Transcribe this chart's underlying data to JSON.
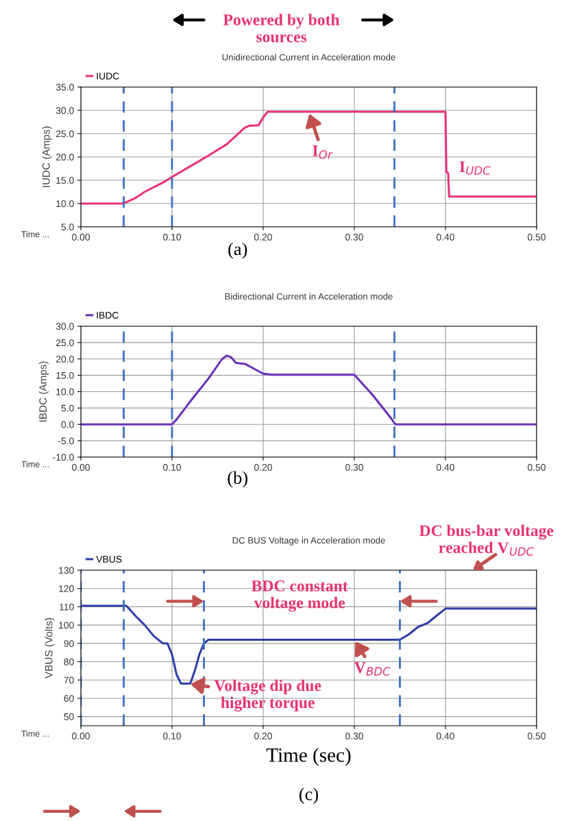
{
  "chart_data": [
    {
      "type": "line",
      "title": "Unidirectional Current in Acceleration mode",
      "ylabel": "IUDC (Amps)",
      "xlabel": "Time ...",
      "series": [
        {
          "name": "IUDC",
          "color": "#e8317a",
          "x": [
            0,
            0.045,
            0.05,
            0.06,
            0.07,
            0.08,
            0.09,
            0.1,
            0.12,
            0.14,
            0.15,
            0.16,
            0.17,
            0.18,
            0.185,
            0.195,
            0.2,
            0.205,
            0.4,
            0.401,
            0.403,
            0.404,
            0.5
          ],
          "values": [
            10,
            10,
            10.3,
            11.2,
            12.5,
            13.5,
            14.5,
            15.7,
            18,
            20.3,
            21.5,
            22.7,
            24.5,
            26.3,
            26.7,
            26.8,
            28.5,
            29.7,
            29.7,
            16.8,
            16.5,
            11.5,
            11.5
          ]
        }
      ],
      "xlim": [
        0,
        0.5
      ],
      "xticks": [
        {
          "value": 0,
          "label": "0.00"
        },
        {
          "value": 0.1,
          "label": "0.10"
        },
        {
          "value": 0.2,
          "label": "0.20"
        },
        {
          "value": 0.3,
          "label": "0.30"
        },
        {
          "value": 0.4,
          "label": "0.40"
        },
        {
          "value": 0.5,
          "label": "0.50"
        }
      ],
      "ylim": [
        5,
        35
      ],
      "yticks": [
        {
          "value": 5,
          "label": "5.0"
        },
        {
          "value": 10,
          "label": "10.0"
        },
        {
          "value": 15,
          "label": "15.0"
        },
        {
          "value": 20,
          "label": "20.0"
        },
        {
          "value": 25,
          "label": "25.0"
        },
        {
          "value": 30,
          "label": "30.0"
        },
        {
          "value": 35,
          "label": "35.0"
        }
      ],
      "grid": true,
      "legend": "top left",
      "ref_lines": [
        {
          "axis": "x",
          "value": 0.047,
          "color": "#3a6fc0",
          "line_style": "dashed"
        },
        {
          "axis": "x",
          "value": 0.1,
          "color": "#3a6fc0",
          "line_style": "dashed"
        },
        {
          "axis": "x",
          "value": 0.344,
          "color": "#3a6fc0",
          "line_style": "dashed"
        }
      ],
      "annotations": [
        "Powered by both\nsources",
        {
          "text": "I$_{Or}$",
          "x": 0.25,
          "y": 29.7
        },
        "I$_{UDC}$",
        "(a)"
      ]
    },
    {
      "type": "line",
      "title": "Bidirectional Current in Acceleration mode",
      "ylabel": "IBDC (Amps)",
      "xlabel": "Time ...",
      "series": [
        {
          "name": "IBDC",
          "color": "#6a2fb8",
          "x": [
            0,
            0.1,
            0.105,
            0.12,
            0.14,
            0.155,
            0.16,
            0.165,
            0.17,
            0.18,
            0.2,
            0.21,
            0.3,
            0.32,
            0.34,
            0.345,
            0.5
          ],
          "values": [
            0,
            0,
            1.5,
            7,
            14,
            20,
            21,
            20.5,
            18.8,
            18.5,
            15.5,
            15.2,
            15.2,
            9,
            2,
            0,
            0
          ]
        }
      ],
      "xlim": [
        0,
        0.5
      ],
      "xticks": [
        {
          "value": 0,
          "label": "0.00"
        },
        {
          "value": 0.1,
          "label": "0.10"
        },
        {
          "value": 0.2,
          "label": "0.20"
        },
        {
          "value": 0.3,
          "label": "0.30"
        },
        {
          "value": 0.4,
          "label": "0.40"
        },
        {
          "value": 0.5,
          "label": "0.50"
        }
      ],
      "ylim": [
        -10,
        30
      ],
      "yticks": [
        {
          "value": -10,
          "label": "-10.0"
        },
        {
          "value": -5,
          "label": "-5.0"
        },
        {
          "value": 0,
          "label": "0.0"
        },
        {
          "value": 5,
          "label": "5.0"
        },
        {
          "value": 10,
          "label": "10.0"
        },
        {
          "value": 15,
          "label": "15.0"
        },
        {
          "value": 20,
          "label": "20.0"
        },
        {
          "value": 25,
          "label": "25.0"
        },
        {
          "value": 30,
          "label": "30.0"
        }
      ],
      "grid": true,
      "legend": "top left",
      "ref_lines": [
        {
          "axis": "x",
          "value": 0.047,
          "color": "#3a6fc0",
          "line_style": "dashed"
        },
        {
          "axis": "x",
          "value": 0.1,
          "color": "#3a6fc0",
          "line_style": "dashed"
        },
        {
          "axis": "x",
          "value": 0.344,
          "color": "#3a6fc0",
          "line_style": "dashed"
        }
      ],
      "annotations": [
        "(b)"
      ]
    },
    {
      "type": "line",
      "title": "DC BUS Voltage in Acceleration mode",
      "ylabel": "VBUS (Volts)",
      "xlabel": "Time ...",
      "series": [
        {
          "name": "VBUS",
          "color": "#2e3fa8",
          "x": [
            0,
            0.05,
            0.06,
            0.07,
            0.08,
            0.09,
            0.095,
            0.1,
            0.105,
            0.11,
            0.12,
            0.125,
            0.13,
            0.135,
            0.14,
            0.35,
            0.36,
            0.37,
            0.38,
            0.39,
            0.4,
            0.5
          ],
          "values": [
            110.5,
            110.5,
            105,
            100,
            94,
            90,
            90,
            84,
            73,
            68,
            68,
            75,
            84,
            90,
            92,
            92,
            95,
            99,
            101,
            105,
            109,
            109
          ]
        }
      ],
      "xlim": [
        0,
        0.5
      ],
      "xticks": [
        {
          "value": 0,
          "label": "0.00"
        },
        {
          "value": 0.1,
          "label": "0.10"
        },
        {
          "value": 0.2,
          "label": "0.20"
        },
        {
          "value": 0.3,
          "label": "0.30"
        },
        {
          "value": 0.4,
          "label": "0.40"
        },
        {
          "value": 0.5,
          "label": "0.50"
        }
      ],
      "ylim": [
        45,
        130
      ],
      "yticks": [
        50,
        60,
        70,
        80,
        90,
        100,
        110,
        120,
        130
      ],
      "grid": true,
      "legend": "top left",
      "ref_lines": [
        {
          "axis": "x",
          "value": 0.047,
          "color": "#3a6fc0",
          "line_style": "dashed"
        },
        {
          "axis": "x",
          "value": 0.135,
          "color": "#3a6fc0",
          "line_style": "dashed"
        },
        {
          "axis": "x",
          "value": 0.35,
          "color": "#3a6fc0",
          "line_style": "dashed"
        },
        {
          "axis": "x",
          "value": 0,
          "color": "#3a6fc0",
          "line_style": "dashed"
        }
      ],
      "annotations": [
        "DC bus-bar voltage\nreached V$_{UDC}$",
        "BDC constant\nvoltage mode",
        {
          "text": "Voltage dip due\nhigher torque",
          "x": 0.118,
          "y": 68
        },
        {
          "text": "V$_{BDC}$",
          "x": 0.3,
          "y": 92
        },
        "Time (sec)",
        "(c)"
      ]
    }
  ]
}
